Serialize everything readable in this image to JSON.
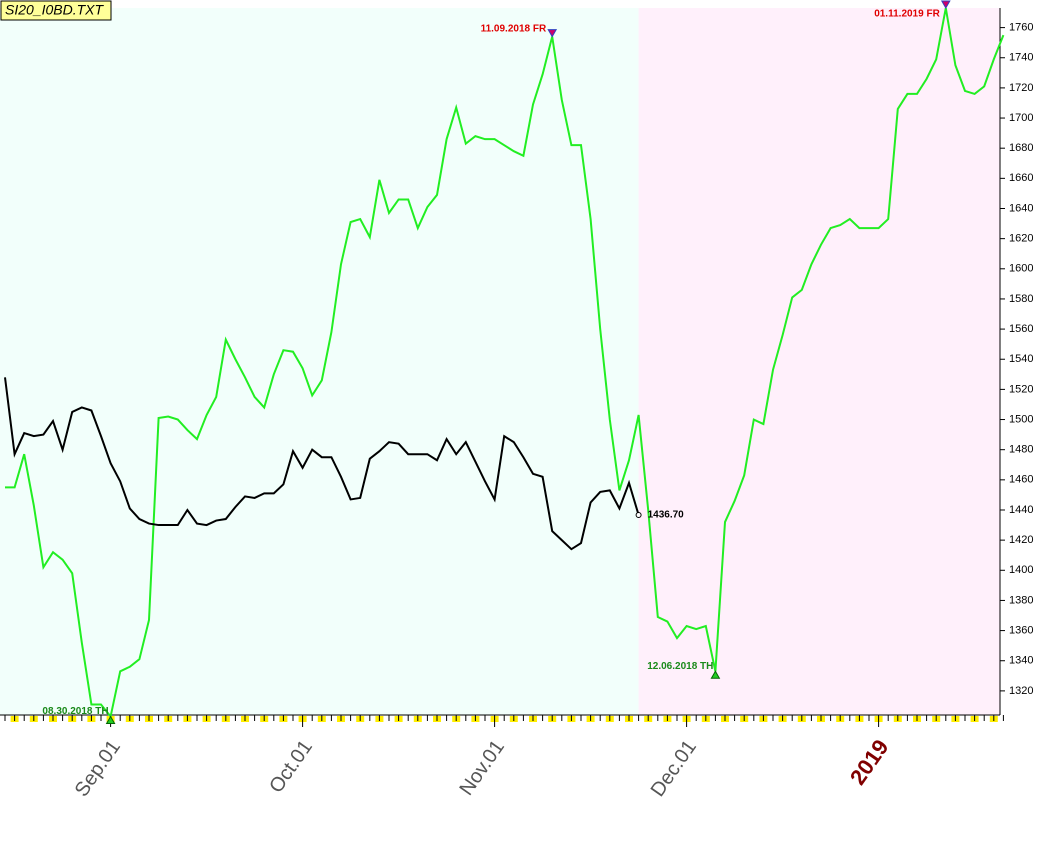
{
  "chart_data": {
    "type": "line",
    "title": "SI20_I0BD.TXT",
    "categories": [
      null,
      null,
      null,
      null,
      null,
      null,
      null,
      null,
      null,
      null,
      null,
      "Sep.01",
      null,
      null,
      null,
      null,
      null,
      null,
      null,
      null,
      null,
      null,
      null,
      null,
      null,
      null,
      null,
      null,
      null,
      null,
      null,
      "Oct.01",
      null,
      null,
      null,
      null,
      null,
      null,
      null,
      null,
      null,
      null,
      null,
      null,
      null,
      null,
      null,
      null,
      null,
      null,
      null,
      "Nov.01",
      null,
      null,
      null,
      null,
      null,
      null,
      null,
      null,
      null,
      null,
      null,
      null,
      null,
      null,
      null,
      null,
      null,
      null,
      null,
      "Dec.01",
      null,
      null,
      null,
      null,
      null,
      null,
      null,
      null,
      null,
      null,
      null,
      null,
      null,
      null,
      null,
      null,
      null,
      null,
      null,
      "2019",
      null,
      null,
      null,
      null,
      null,
      null,
      null,
      null,
      null,
      null,
      null,
      null,
      null
    ],
    "emphasized_categories": [
      91
    ],
    "series": [
      {
        "color": "#22ee22",
        "values": [
          1455,
          1455,
          1477,
          1443,
          1402,
          1412,
          1407,
          1398,
          1352,
          1311,
          1311,
          1303,
          1333,
          1336,
          1341,
          1367,
          1501,
          1502,
          1500,
          1493,
          1487,
          1503,
          1515,
          1553,
          1540,
          1528,
          1515,
          1508,
          1530,
          1546,
          1545,
          1534,
          1516,
          1526,
          1558,
          1603,
          1631,
          1633,
          1621,
          1659,
          1637,
          1646,
          1646,
          1627,
          1641,
          1649,
          1686,
          1707,
          1683,
          1688,
          1686,
          1686,
          1682,
          1678,
          1675,
          1709,
          1729,
          1754,
          1712,
          1682,
          1682,
          1633,
          1560,
          1500,
          1453,
          1473,
          1503,
          1440,
          1369,
          1366,
          1355,
          1363,
          1361,
          1363,
          1333,
          1432,
          1446,
          1463,
          1500,
          1497,
          1533,
          1556,
          1581,
          1586,
          1603,
          1616,
          1627,
          1629,
          1633,
          1627,
          1627,
          1627,
          1633,
          1706,
          1716,
          1716,
          1726,
          1739,
          1773,
          1735,
          1718,
          1716,
          1721,
          1739,
          1755
        ]
      },
      {
        "color": "#000000",
        "values": [
          1528,
          1477,
          1491,
          1489,
          1490,
          1499,
          1480,
          1505,
          1508,
          1506,
          1489,
          1471,
          1459,
          1441,
          1434,
          1431,
          1430,
          1430,
          1430,
          1440,
          1431,
          1430,
          1433,
          1434,
          1442,
          1449,
          1448,
          1451,
          1451,
          1457,
          1479,
          1468,
          1480,
          1475,
          1475,
          1462,
          1447,
          1448,
          1474,
          1479,
          1485,
          1484,
          1477,
          1477,
          1477,
          1473,
          1487,
          1477,
          1485,
          1472,
          1459,
          1447,
          1489,
          1485,
          1475,
          1464,
          1462,
          1426,
          1420,
          1414,
          1418,
          1445,
          1452,
          1453,
          1441,
          1458,
          1436.7,
          null,
          null,
          null,
          null,
          null,
          null,
          null,
          null,
          null,
          null,
          null,
          null,
          null,
          null,
          null,
          null,
          null,
          null,
          null,
          null,
          null,
          null,
          null,
          null,
          null,
          null,
          null,
          null,
          null,
          null,
          null,
          null,
          null,
          null,
          null,
          null,
          null,
          null
        ],
        "value_labels": [
          null,
          null,
          null,
          null,
          null,
          null,
          null,
          null,
          null,
          null,
          null,
          null,
          null,
          null,
          null,
          null,
          null,
          null,
          null,
          null,
          null,
          null,
          null,
          null,
          null,
          null,
          null,
          null,
          null,
          null,
          null,
          null,
          null,
          null,
          null,
          null,
          null,
          null,
          null,
          null,
          null,
          null,
          null,
          null,
          null,
          null,
          null,
          null,
          null,
          null,
          null,
          null,
          null,
          null,
          null,
          null,
          null,
          null,
          null,
          null,
          null,
          null,
          null,
          null,
          null,
          null,
          "1436.70",
          null,
          null,
          null,
          null,
          null,
          null,
          null,
          null,
          null,
          null,
          null,
          null,
          null,
          null,
          null,
          null,
          null,
          null,
          null,
          null,
          null,
          null,
          null,
          null,
          null,
          null,
          null,
          null,
          null,
          null,
          null,
          null,
          null,
          null,
          null,
          null,
          null,
          null
        ]
      }
    ],
    "annotations": [
      {
        "text": "08.30.2018 TH",
        "point": 11,
        "kind": "low",
        "color": "#1a8a1a"
      },
      {
        "text": "11.09.2018 FR",
        "point": 57,
        "kind": "high",
        "color": "#e00000"
      },
      {
        "text": "12.06.2018 TH",
        "point": 74,
        "kind": "low",
        "color": "#1a8a1a"
      },
      {
        "text": "01.11.2019 FR",
        "point": 98,
        "kind": "high",
        "color": "#e00000"
      }
    ],
    "regions": [
      {
        "from": 0,
        "to": 66,
        "color": "#f2fffb"
      },
      {
        "from": 66,
        "to": 104,
        "color": "#fff0fb"
      }
    ],
    "ylim": [
      1304,
      1773
    ],
    "yticks": [
      1320,
      1340,
      1360,
      1380,
      1400,
      1420,
      1440,
      1460,
      1480,
      1500,
      1520,
      1540,
      1560,
      1580,
      1600,
      1620,
      1640,
      1660,
      1680,
      1700,
      1720,
      1740,
      1760
    ]
  }
}
